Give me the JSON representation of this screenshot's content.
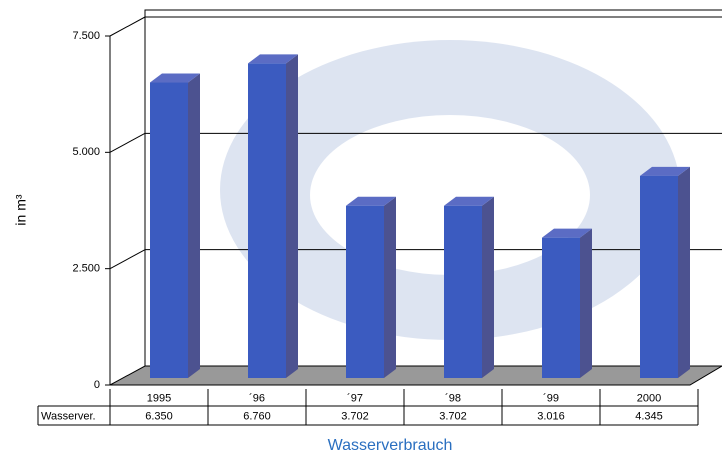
{
  "chart_data": {
    "type": "bar3d",
    "categories": [
      "1995",
      "´96",
      "´97",
      "´98",
      "´99",
      "2000"
    ],
    "series": [
      {
        "name": "Wasserver.",
        "color": "#3b5bc0",
        "values": [
          6350,
          6760,
          3702,
          3702,
          3016,
          4345
        ],
        "value_labels": [
          "6.350",
          "6.760",
          "3.702",
          "3.702",
          "3.016",
          "4.345"
        ]
      }
    ],
    "ylim": [
      0,
      7500
    ],
    "yticks": [
      0,
      {
        "value": 2500,
        "label": "2.500"
      },
      {
        "value": 5000,
        "label": "5.000"
      },
      {
        "value": 7500,
        "label": "7.500"
      }
    ],
    "grid": true,
    "ylabel": "in m³",
    "xlabel": "Wasserverbrauch"
  }
}
